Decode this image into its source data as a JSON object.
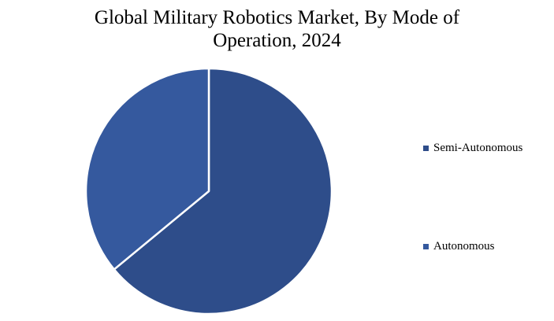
{
  "chart_data": {
    "type": "pie",
    "title_lines": [
      "Global Military Robotics Market, By Mode of",
      "Operation, 2024"
    ],
    "categories": [
      "Semi-Autonomous",
      "Autonomous"
    ],
    "values": [
      64,
      36
    ],
    "colors": [
      "#2e4d8a",
      "#35599e"
    ],
    "slice_border_color": "#ffffff",
    "legend_position": "right",
    "start": "top",
    "direction": "clockwise"
  }
}
